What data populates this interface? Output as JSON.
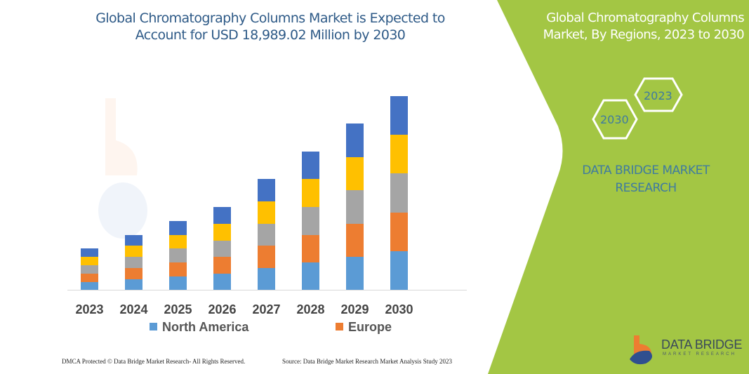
{
  "title": "Global Chromatography Columns Market is Expected to Account for USD 18,989.02 Million by 2030",
  "title_lines": [
    "Global Chromatography Columns Market is Expected to",
    "Account for USD 18,989.02 Million by 2030"
  ],
  "side_panel": {
    "title_lines": [
      "Global Chromatography Columns",
      "Market, By Regions, 2023 to 2030"
    ],
    "hex_labels": [
      "2030",
      "2023"
    ],
    "brand_lines": [
      "DATA BRIDGE MARKET",
      "RESEARCH"
    ],
    "logo_text": "DATA BRIDGE",
    "logo_subtext": "MARKET RESEARCH",
    "background_color": "#A3C644"
  },
  "footer": {
    "left": "DMCA Protected © Data Bridge Market Research-  All Rights Reserved.",
    "right": "Source: Data Bridge Market Research  Market Analysis Study 2023"
  },
  "chart_data": {
    "type": "bar",
    "stacked": true,
    "title": "Global Chromatography Columns Market is Expected to Account for USD 18,989.02 Million by 2030",
    "xlabel": "",
    "ylabel": "",
    "y_axis_shown": false,
    "grid": false,
    "legend_placement": "bottom",
    "categories": [
      "2023",
      "2024",
      "2025",
      "2026",
      "2027",
      "2028",
      "2029",
      "2030"
    ],
    "series": [
      {
        "name": "North America",
        "color": "#5B9BD5",
        "values": [
          11,
          15,
          19,
          23,
          31,
          39,
          47,
          55
        ]
      },
      {
        "name": "Europe",
        "color": "#ED7D31",
        "values": [
          12,
          16,
          20,
          24,
          32,
          39,
          47,
          55
        ]
      },
      {
        "color": "#A5A5A5",
        "values": [
          12,
          16,
          20,
          23,
          31,
          40,
          48,
          56
        ]
      },
      {
        "color": "#FFC000",
        "values": [
          12,
          16,
          19,
          24,
          32,
          40,
          47,
          55
        ]
      },
      {
        "color": "#4472C4",
        "values": [
          12,
          15,
          20,
          24,
          32,
          39,
          48,
          55
        ]
      }
    ]
  }
}
